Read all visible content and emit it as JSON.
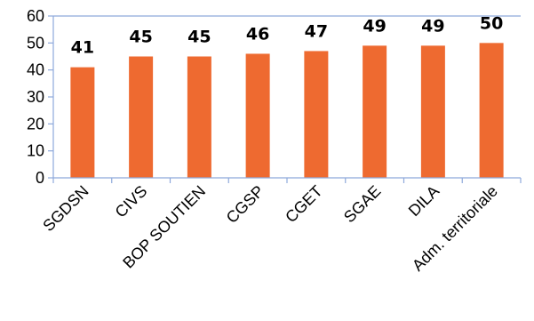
{
  "chart_data": {
    "type": "bar",
    "title": "",
    "xlabel": "",
    "ylabel": "",
    "categories": [
      "SGDSN",
      "CIVS",
      "BOP SOUTIEN",
      "CGSP",
      "CGET",
      "SGAE",
      "DILA",
      "Adm. territoriale"
    ],
    "values": [
      41,
      45,
      45,
      46,
      47,
      49,
      49,
      50
    ],
    "data_labels": [
      "41",
      "45",
      "45",
      "46",
      "47",
      "49",
      "49",
      "50"
    ],
    "ylim": [
      0,
      60
    ],
    "yticks": [
      0,
      10,
      20,
      30,
      40,
      50,
      60
    ],
    "ytick_labels": [
      "0",
      "10",
      "20",
      "30",
      "40",
      "50",
      "60"
    ],
    "grid": false,
    "legend": "none",
    "bar_color": "#EE6A30",
    "axis_color": "#8EA9DB"
  }
}
